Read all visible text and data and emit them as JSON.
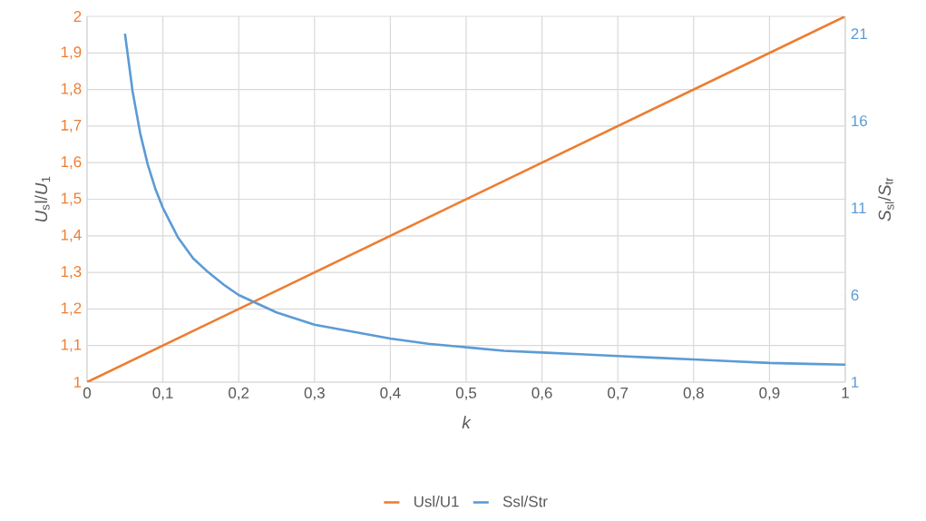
{
  "chart_data": {
    "type": "line",
    "xlabel": "k",
    "ylabel": "*U*$_{s}$l/*U*$_{1}$",
    "y2label": "*S*$_{sl}$/*S*$_{tr}$",
    "xlim": [
      0,
      1
    ],
    "xticks": [
      0,
      {
        "value": 0.1,
        "label": "0,1"
      },
      {
        "value": 0.2,
        "label": "0,2"
      },
      {
        "value": 0.3,
        "label": "0,3"
      },
      {
        "value": 0.4,
        "label": "0,4"
      },
      {
        "value": 0.5,
        "label": "0,5"
      },
      {
        "value": 0.6,
        "label": "0,6"
      },
      {
        "value": 0.7,
        "label": "0,7"
      },
      {
        "value": 0.8,
        "label": "0,8"
      },
      {
        "value": 0.9,
        "label": "0,9"
      },
      1
    ],
    "ylim": [
      1,
      2
    ],
    "yticks": [
      1,
      {
        "value": 1.1,
        "label": "1,1"
      },
      {
        "value": 1.2,
        "label": "1,2"
      },
      {
        "value": 1.3,
        "label": "1,3"
      },
      {
        "value": 1.4,
        "label": "1,4"
      },
      {
        "value": 1.5,
        "label": "1,5"
      },
      {
        "value": 1.6,
        "label": "1,6"
      },
      {
        "value": 1.7,
        "label": "1,7"
      },
      {
        "value": 1.8,
        "label": "1,8"
      },
      {
        "value": 1.9,
        "label": "1,9"
      },
      2
    ],
    "y2lim": [
      1,
      22
    ],
    "y2ticks": [
      1,
      6,
      11,
      16,
      21
    ],
    "grid": true,
    "legend": "bottom",
    "marker": "none",
    "line_style": "solid",
    "series": [
      {
        "name": "Usl/U1",
        "color": "#ed7d31",
        "x": [
          0,
          1
        ],
        "values": [
          1,
          2
        ]
      },
      {
        "name": "Ssl/Str",
        "color": "#5b9bd5",
        "axis": "y2",
        "x": [
          0.05,
          0.06,
          0.07,
          0.08,
          0.09,
          0.1,
          0.12,
          0.14,
          0.16,
          0.18,
          0.2,
          0.25,
          0.3,
          0.35,
          0.4,
          0.45,
          0.5,
          0.55,
          0.6,
          0.65,
          0.7,
          0.75,
          0.8,
          0.85,
          0.9,
          0.95,
          1
        ],
        "values": [
          21,
          17.7,
          15.3,
          13.5,
          12.1,
          11,
          9.3,
          8.1,
          7.3,
          6.6,
          6,
          5,
          4.3,
          3.9,
          3.5,
          3.2,
          3,
          2.8,
          2.7,
          2.6,
          2.5,
          2.4,
          2.3,
          2.2,
          2.1,
          2.05,
          2
        ]
      }
    ]
  }
}
